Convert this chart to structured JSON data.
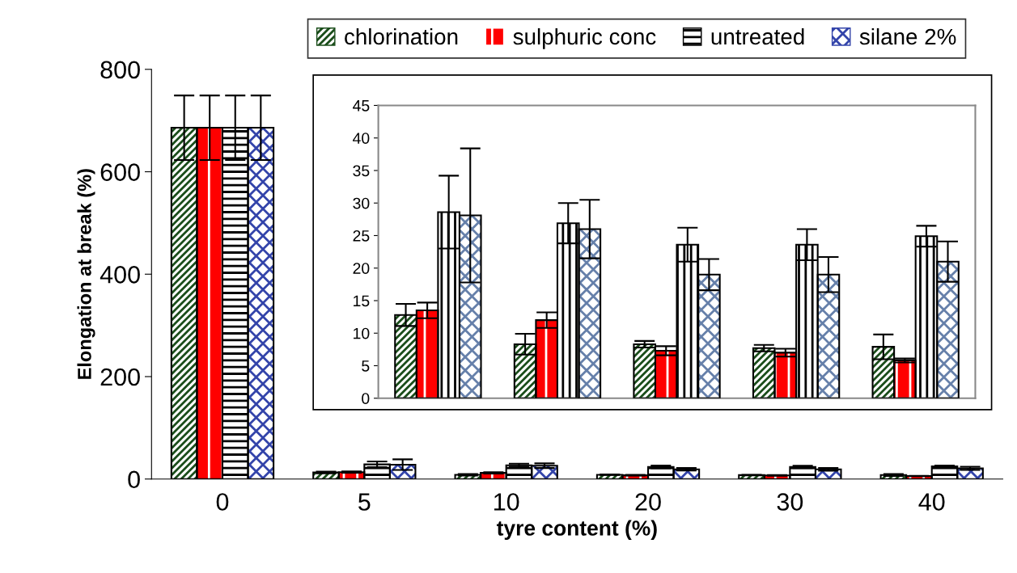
{
  "chart_data": [
    {
      "type": "bar",
      "xlabel": "tyre content (%)",
      "ylabel": "Elongation at break (%)",
      "categories": [
        "0",
        "5",
        "10",
        "20",
        "30",
        "40"
      ],
      "ylim": [
        0,
        800
      ],
      "yticks": [
        0,
        200,
        400,
        600,
        800
      ],
      "legend": "top",
      "grid": false,
      "series": [
        {
          "name": "chlorination",
          "color": "#1a4d1a",
          "values": [
            686,
            12.8,
            8.3,
            8.3,
            7.7,
            7.9
          ],
          "errors": [
            63,
            1.7,
            1.6,
            0.5,
            0.5,
            1.9
          ]
        },
        {
          "name": "sulphuric conc",
          "color": "#ff0000",
          "values": [
            686,
            13.5,
            12.0,
            7.3,
            7.0,
            5.8
          ],
          "errors": [
            63,
            1.2,
            1.2,
            0.7,
            0.6,
            0.3
          ]
        },
        {
          "name": "untreated",
          "color": "#000000",
          "values": [
            686,
            28.6,
            26.9,
            23.6,
            23.6,
            24.9
          ],
          "errors": [
            63,
            5.6,
            3.1,
            2.6,
            2.4,
            1.6
          ]
        },
        {
          "name": "silane 2%",
          "color": "#3344aa",
          "values": [
            686,
            28.1,
            26.0,
            19.0,
            19.0,
            21.0
          ],
          "errors": [
            63,
            10.3,
            4.5,
            2.4,
            2.7,
            3.1
          ]
        }
      ]
    },
    {
      "type": "bar",
      "categories": [
        null,
        null,
        null,
        null,
        null
      ],
      "ylim": [
        0,
        45
      ],
      "yticks": [
        0,
        5,
        10,
        15,
        20,
        25,
        30,
        35,
        40,
        45
      ],
      "grid": false,
      "series": [
        {
          "color": "#1a4d1a",
          "values": [
            12.8,
            8.3,
            8.3,
            7.7,
            7.9
          ],
          "errors": [
            1.7,
            1.6,
            0.5,
            0.5,
            1.9
          ]
        },
        {
          "color": "#ff0000",
          "values": [
            13.5,
            12.0,
            7.3,
            7.0,
            5.8
          ],
          "errors": [
            1.2,
            1.2,
            0.7,
            0.6,
            0.3
          ]
        },
        {
          "color": "#000000",
          "values": [
            28.6,
            26.9,
            23.6,
            23.6,
            24.9
          ],
          "errors": [
            5.6,
            3.1,
            2.6,
            2.4,
            1.6
          ]
        },
        {
          "color": "#6680aa",
          "values": [
            28.1,
            26.0,
            19.0,
            19.0,
            21.0
          ],
          "errors": [
            10.3,
            4.5,
            2.4,
            2.7,
            3.1
          ]
        }
      ]
    }
  ]
}
